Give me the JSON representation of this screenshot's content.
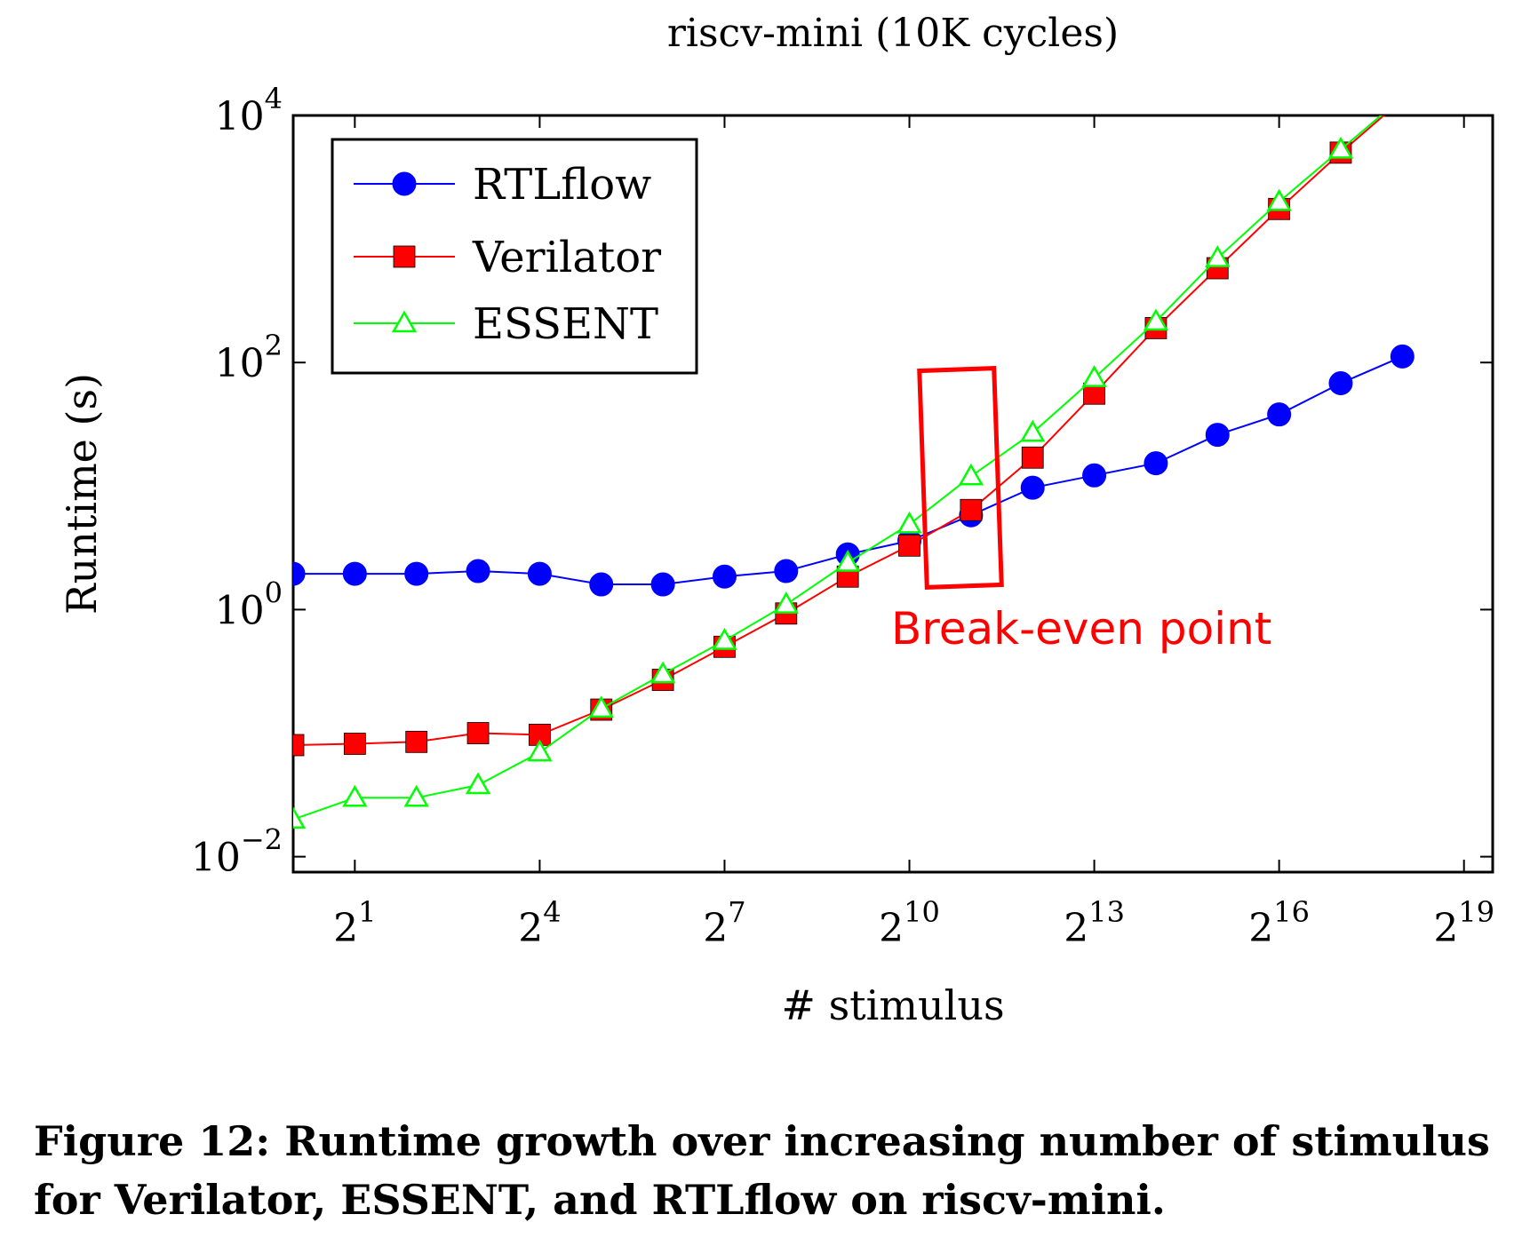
{
  "chart_data": {
    "type": "line",
    "title": "riscv-mini (10K cycles)",
    "xlabel": "# stimulus",
    "ylabel": "Runtime (s)",
    "x_scale": "log2",
    "y_scale": "log10",
    "xlim": [
      1,
      724077
    ],
    "ylim": [
      0.0075,
      10000
    ],
    "x_ticks": [
      {
        "value": 2,
        "base": "2",
        "exp": "1"
      },
      {
        "value": 16,
        "base": "2",
        "exp": "4"
      },
      {
        "value": 128,
        "base": "2",
        "exp": "7"
      },
      {
        "value": 1024,
        "base": "2",
        "exp": "10"
      },
      {
        "value": 8192,
        "base": "2",
        "exp": "13"
      },
      {
        "value": 65536,
        "base": "2",
        "exp": "16"
      },
      {
        "value": 524288,
        "base": "2",
        "exp": "19"
      }
    ],
    "y_ticks": [
      {
        "value": 0.01,
        "base": "10",
        "exp": "−2"
      },
      {
        "value": 1,
        "base": "10",
        "exp": "0"
      },
      {
        "value": 100,
        "base": "10",
        "exp": "2"
      },
      {
        "value": 10000,
        "base": "10",
        "exp": "4"
      }
    ],
    "grid": false,
    "legend_position": "top-left",
    "series": [
      {
        "name": "RTLflow",
        "color": "#0000ff",
        "marker": "circle",
        "x": [
          1,
          2,
          4,
          8,
          16,
          32,
          64,
          128,
          256,
          512,
          1024,
          2048,
          4096,
          8192,
          16384,
          32768,
          65536,
          131072,
          262144
        ],
        "y": [
          1.95,
          1.95,
          1.95,
          2.05,
          1.95,
          1.6,
          1.6,
          1.85,
          2.05,
          2.8,
          3.6,
          5.8,
          9.7,
          12.2,
          15.3,
          26,
          38,
          68,
          112
        ]
      },
      {
        "name": "Verilator",
        "color": "#ff0000",
        "marker": "square",
        "x": [
          1,
          2,
          4,
          8,
          16,
          32,
          64,
          128,
          256,
          512,
          1024,
          2048,
          4096,
          8192,
          16384,
          32768,
          65536,
          131072,
          262144
        ],
        "y": [
          0.08,
          0.082,
          0.085,
          0.1,
          0.097,
          0.155,
          0.27,
          0.5,
          0.93,
          1.85,
          3.3,
          6.4,
          17,
          56,
          190,
          580,
          1750,
          5000,
          13500
        ]
      },
      {
        "name": "ESSENT",
        "color": "#00ff00",
        "marker": "triangle",
        "x": [
          1,
          2,
          4,
          8,
          16,
          32,
          64,
          128,
          256,
          512,
          1024,
          2048,
          4096,
          8192,
          16384,
          32768,
          65536,
          131072,
          262144
        ],
        "y": [
          0.02,
          0.03,
          0.03,
          0.038,
          0.07,
          0.158,
          0.3,
          0.56,
          1.1,
          2.4,
          4.9,
          12,
          27,
          75,
          215,
          700,
          2000,
          5300,
          14000
        ]
      }
    ],
    "annotations": [
      {
        "text": "Break-even point",
        "color": "#ff0000"
      }
    ]
  },
  "caption": "Figure 12: Runtime growth over increasing number of stimulus for Verilator, ESSENT, and RTLflow on riscv-mini."
}
